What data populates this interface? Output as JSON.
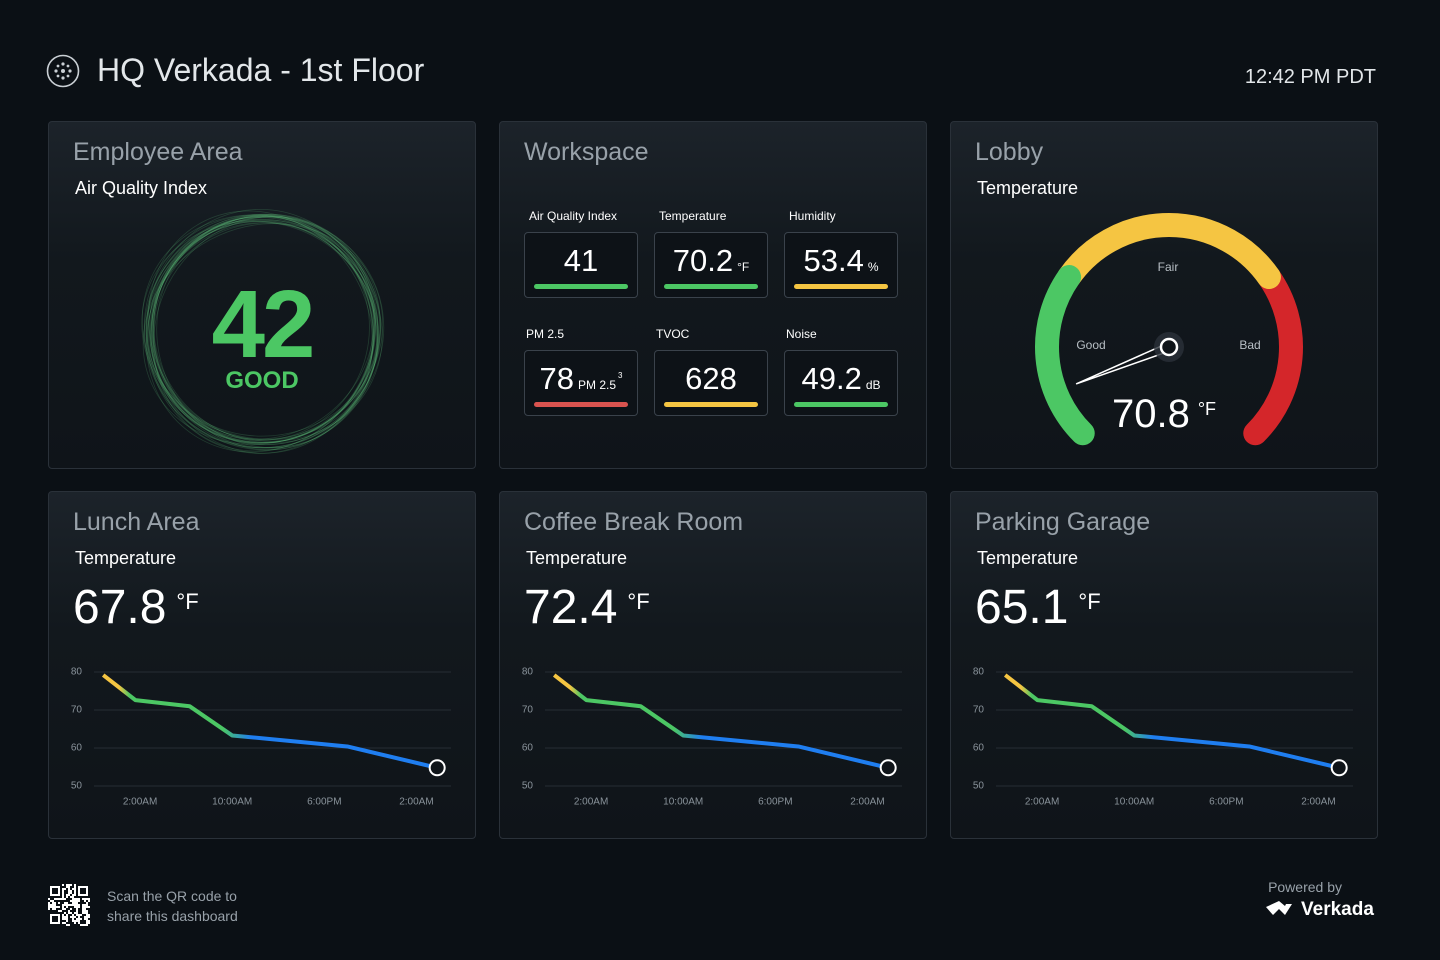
{
  "header": {
    "title": "HQ Verkada - 1st Floor",
    "time": "12:42 PM PDT"
  },
  "employee_area": {
    "title": "Employee Area",
    "metric": "Air Quality Index",
    "value": 42,
    "status": "GOOD"
  },
  "workspace": {
    "title": "Workspace",
    "tiles": [
      {
        "label": "Air Quality Index",
        "value": 41,
        "color": "#4cc764"
      },
      {
        "label": "Temperature",
        "value": 70.2,
        "unit": "°F",
        "color": "#4cc764"
      },
      {
        "label": "Humidity",
        "value": 53.4,
        "unit": "%",
        "color": "#f5c542"
      },
      {
        "label": "PM 2.5",
        "value": 78,
        "unit": "PM 2.5",
        "unit_sup": "3",
        "color": "#d9534f"
      },
      {
        "label": "TVOC",
        "value": 628,
        "color": "#f5c542"
      },
      {
        "label": "Noise",
        "value": 49.2,
        "unit": "dB",
        "color": "#4cc764"
      }
    ]
  },
  "lobby": {
    "title": "Lobby",
    "metric": "Temperature",
    "value": 70.8,
    "unit": "°F",
    "zones": [
      "Good",
      "Fair",
      "Bad"
    ]
  },
  "trend_cards": [
    {
      "title": "Lunch Area",
      "metric": "Temperature",
      "value": 67.8,
      "unit": "°F",
      "chart_data": {
        "type": "line",
        "x": [
          -3.2,
          -0.4,
          4.3,
          8,
          18,
          25.8
        ],
        "series": [
          {
            "values": [
              79.2,
              72.6,
              71,
              63.3,
              60.4,
              54.8
            ]
          }
        ],
        "xlim": [
          -4,
          27
        ],
        "ylim": [
          50,
          80
        ],
        "xticks": [
          {
            "value": 0,
            "label": "2:00AM"
          },
          {
            "value": 8,
            "label": "10:00AM"
          },
          {
            "value": 16,
            "label": "6:00PM"
          },
          {
            "value": 24,
            "label": "2:00AM"
          }
        ],
        "yticks": [
          50,
          60,
          70,
          80
        ],
        "grid": true
      }
    },
    {
      "title": "Coffee Break Room",
      "metric": "Temperature",
      "value": 72.4,
      "unit": "°F",
      "chart_data": {
        "type": "line",
        "x": [
          -3.2,
          -0.4,
          4.3,
          8,
          18,
          25.8
        ],
        "series": [
          {
            "values": [
              79.2,
              72.6,
              71,
              63.3,
              60.4,
              54.8
            ]
          }
        ],
        "xlim": [
          -4,
          27
        ],
        "ylim": [
          50,
          80
        ],
        "xticks": [
          {
            "value": 0,
            "label": "2:00AM"
          },
          {
            "value": 8,
            "label": "10:00AM"
          },
          {
            "value": 16,
            "label": "6:00PM"
          },
          {
            "value": 24,
            "label": "2:00AM"
          }
        ],
        "yticks": [
          50,
          60,
          70,
          80
        ],
        "grid": true
      }
    },
    {
      "title": "Parking Garage",
      "metric": "Temperature",
      "value": 65.1,
      "unit": "°F",
      "chart_data": {
        "type": "line",
        "x": [
          -3.2,
          -0.4,
          4.3,
          8,
          18,
          25.8
        ],
        "series": [
          {
            "values": [
              79.2,
              72.6,
              71,
              63.3,
              60.4,
              54.8
            ]
          }
        ],
        "xlim": [
          -4,
          27
        ],
        "ylim": [
          50,
          80
        ],
        "xticks": [
          {
            "value": 0,
            "label": "2:00AM"
          },
          {
            "value": 8,
            "label": "10:00AM"
          },
          {
            "value": 16,
            "label": "6:00PM"
          },
          {
            "value": 24,
            "label": "2:00AM"
          }
        ],
        "yticks": [
          50,
          60,
          70,
          80
        ],
        "grid": true
      }
    }
  ],
  "footer": {
    "qr_text": [
      "Scan the QR code to",
      "share this dashboard"
    ],
    "powered_by": "Powered by",
    "brand": "Verkada"
  }
}
